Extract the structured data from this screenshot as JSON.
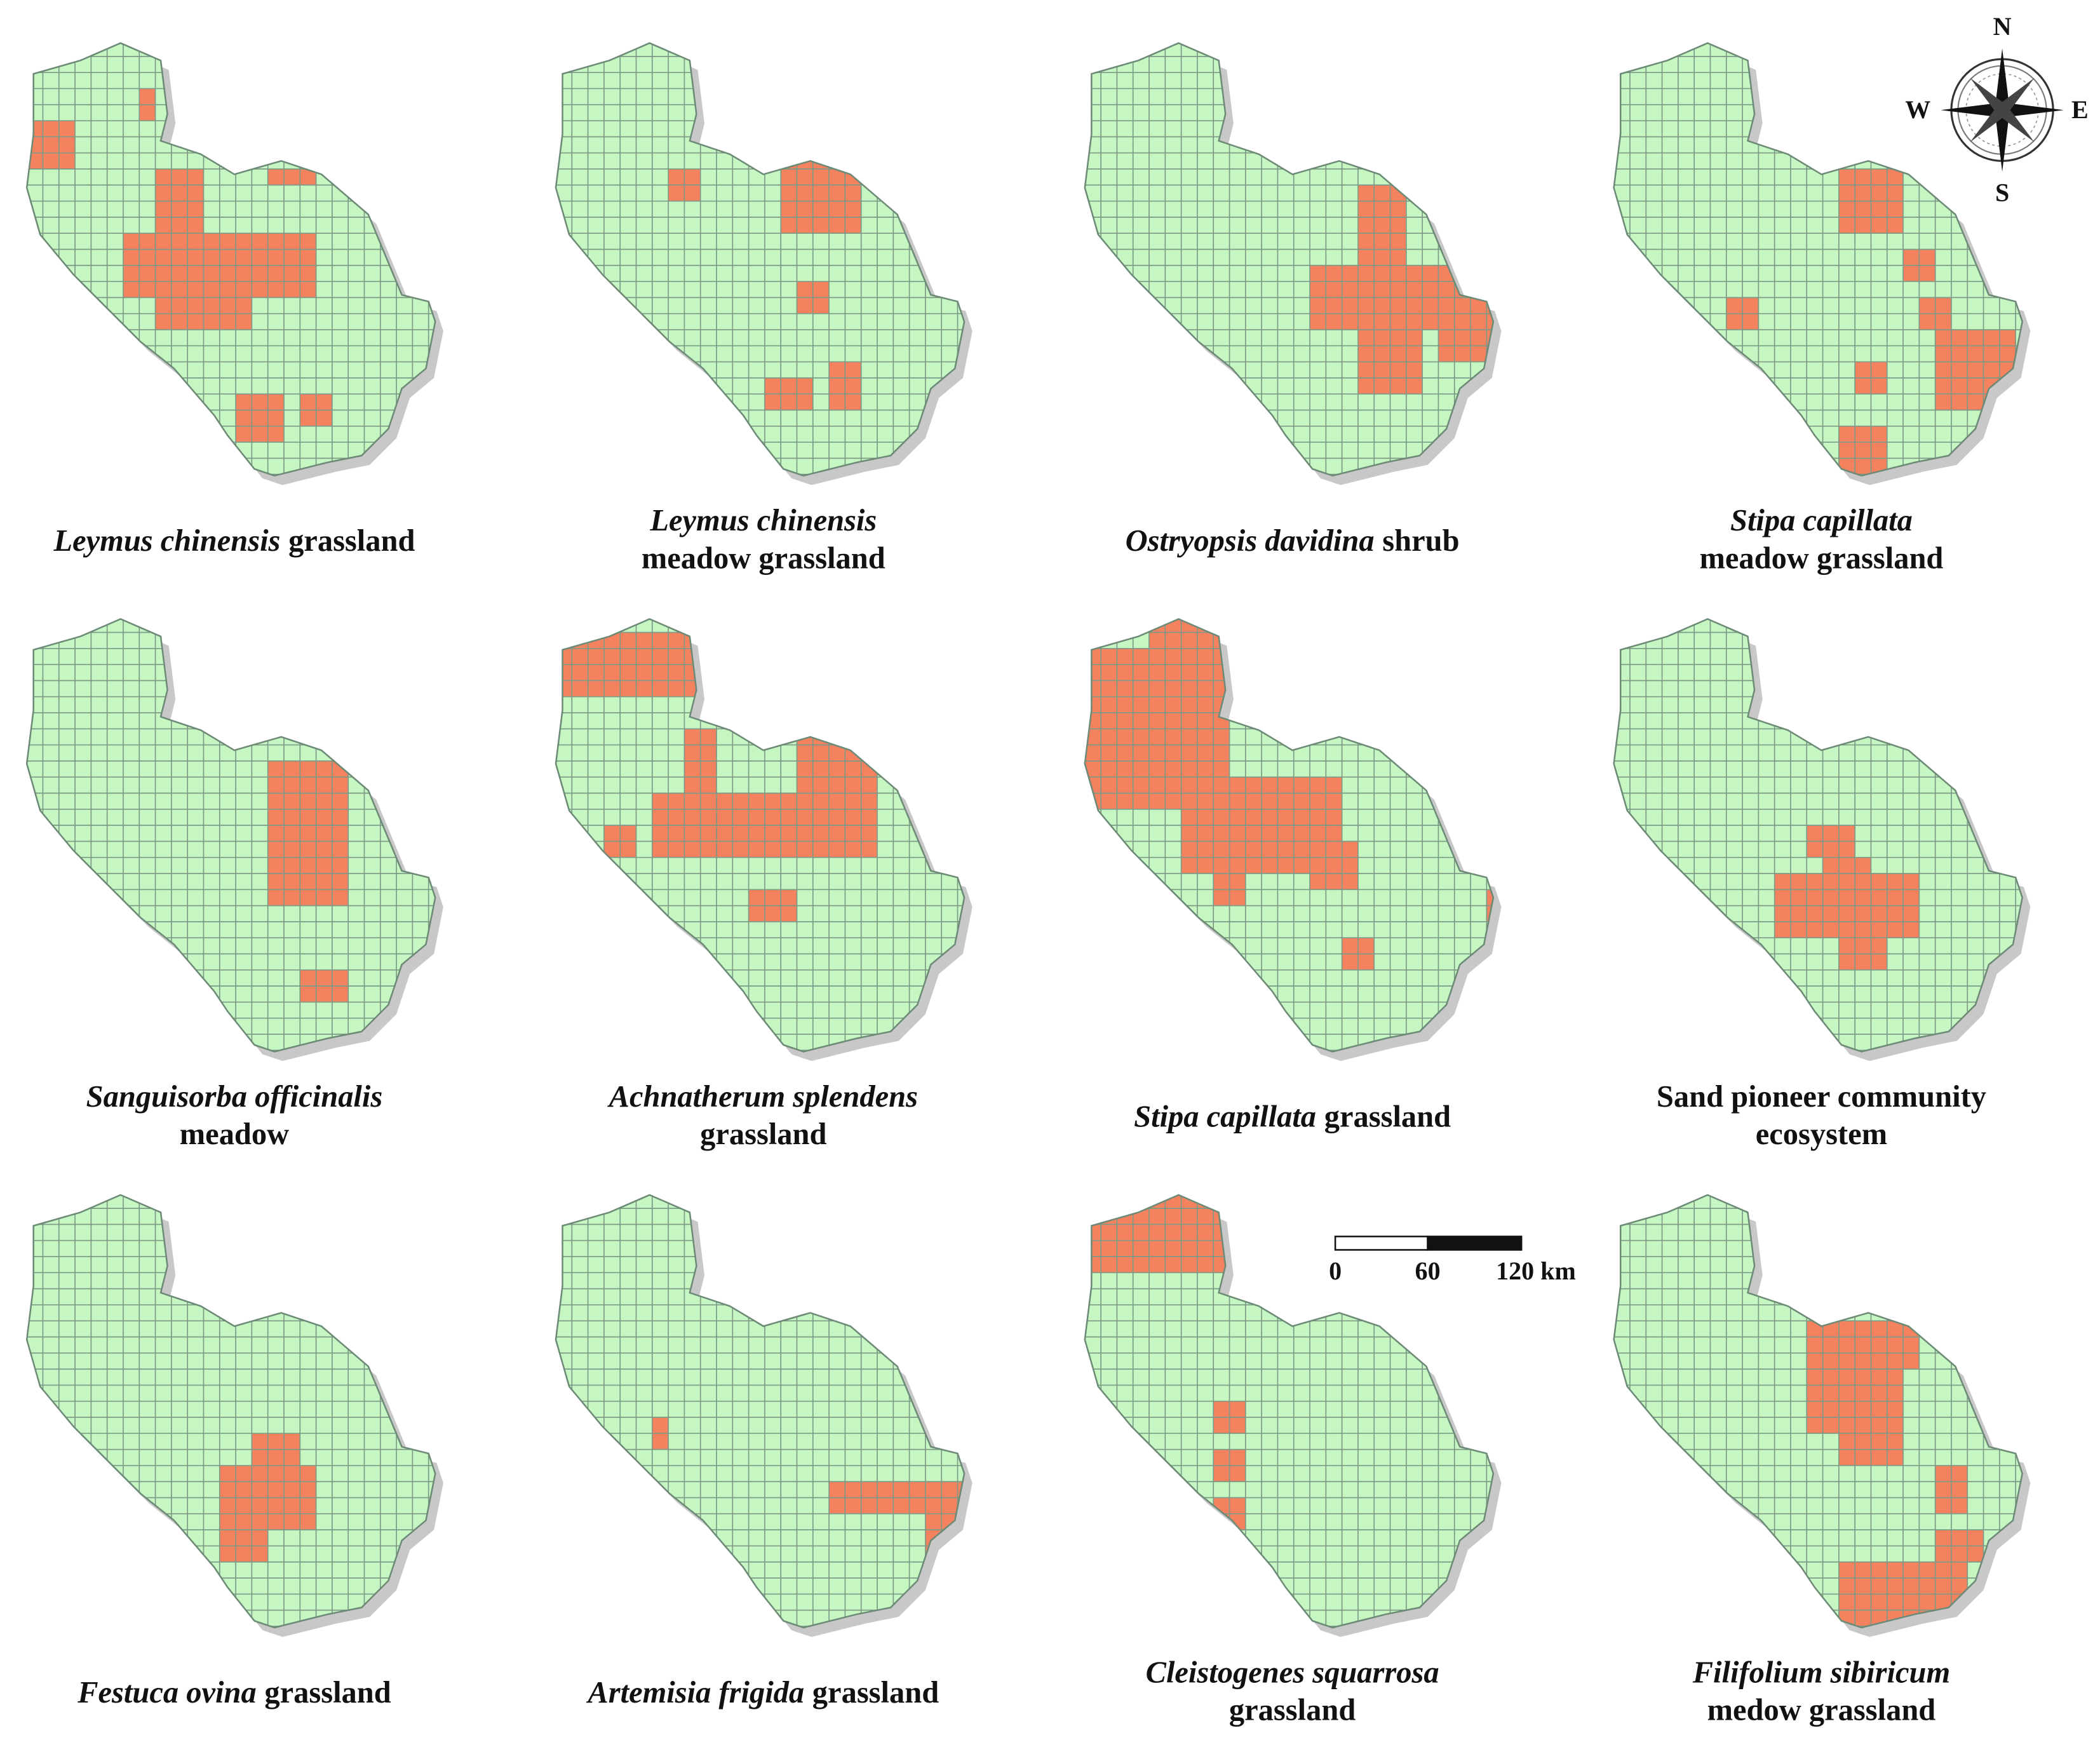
{
  "panels": [
    {
      "caption": [
        [
          {
            "text": "Leymus chinensis",
            "italic": true
          },
          {
            "text": "grassland"
          }
        ]
      ]
    },
    {
      "caption": [
        [
          {
            "text": "Leymus chinensis",
            "italic": true
          }
        ],
        [
          {
            "text": "meadow grassland"
          }
        ]
      ]
    },
    {
      "caption": [
        [
          {
            "text": "Ostryopsis davidina",
            "italic": true
          },
          {
            "text": "shrub"
          }
        ]
      ]
    },
    {
      "caption": [
        [
          {
            "text": "Stipa capillata",
            "italic": true
          }
        ],
        [
          {
            "text": "meadow grassland"
          }
        ]
      ]
    },
    {
      "caption": [
        [
          {
            "text": "Sanguisorba officinalis",
            "italic": true
          }
        ],
        [
          {
            "text": "meadow"
          }
        ]
      ]
    },
    {
      "caption": [
        [
          {
            "text": "Achnatherum splendens",
            "italic": true
          }
        ],
        [
          {
            "text": "grassland"
          }
        ]
      ]
    },
    {
      "caption": [
        [
          {
            "text": "Stipa capillata",
            "italic": true
          },
          {
            "text": "grassland"
          }
        ]
      ]
    },
    {
      "caption": [
        [
          {
            "text": "Sand pioneer community"
          }
        ],
        [
          {
            "text": "ecosystem"
          }
        ]
      ]
    },
    {
      "caption": [
        [
          {
            "text": "Festuca ovina",
            "italic": true
          },
          {
            "text": "grassland"
          }
        ]
      ]
    },
    {
      "caption": [
        [
          {
            "text": "Artemisia frigida",
            "italic": true
          },
          {
            "text": "grassland"
          }
        ]
      ]
    },
    {
      "caption": [
        [
          {
            "text": "Cleistogenes squarrosa",
            "italic": true
          }
        ],
        [
          {
            "text": "grassland"
          }
        ]
      ]
    },
    {
      "caption": [
        [
          {
            "text": "Filifolium sibiricum",
            "italic": true
          }
        ],
        [
          {
            "text": "medow grassland"
          }
        ]
      ]
    }
  ],
  "compass": {
    "north": "N",
    "east": "E",
    "south": "S",
    "west": "W"
  },
  "scale_bar": {
    "labels": [
      "0",
      "60",
      "120 km"
    ]
  }
}
